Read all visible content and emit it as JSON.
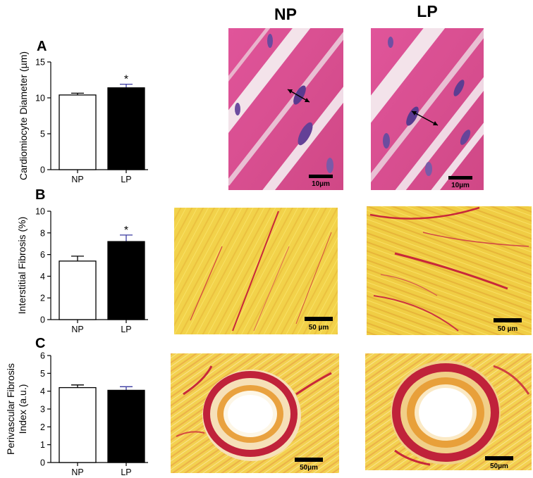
{
  "columns": [
    "NP",
    "LP"
  ],
  "panels": [
    {
      "letter": "A",
      "scale_bar": "10µm"
    },
    {
      "letter": "B",
      "scale_bar": "50 µm"
    },
    {
      "letter": "C",
      "scale_bar": "50µm"
    }
  ],
  "colors": {
    "NP_bar": "#ffffff",
    "LP_bar": "#000000",
    "he_stain": "#d8508e",
    "nuclei": "#5a3a8f",
    "picrosirius_yellow": "#f0d040",
    "collagen_red": "#c8283a"
  },
  "chart_data": [
    {
      "type": "bar",
      "panel": "A",
      "categories": [
        "NP",
        "LP"
      ],
      "values": [
        10.4,
        11.4
      ],
      "errors": [
        0.25,
        0.5
      ],
      "significance": [
        "",
        "*"
      ],
      "ylabel": "Cardiomiocyte Diameter (µm)",
      "ylim": [
        0,
        15
      ],
      "yticks": [
        0,
        5,
        10,
        15
      ]
    },
    {
      "type": "bar",
      "panel": "B",
      "categories": [
        "NP",
        "LP"
      ],
      "values": [
        5.4,
        7.2
      ],
      "errors": [
        0.45,
        0.6
      ],
      "significance": [
        "",
        "*"
      ],
      "ylabel": "Interstitial Fibrosis (%)",
      "ylim": [
        0,
        10
      ],
      "yticks": [
        0,
        2,
        4,
        6,
        8,
        10
      ]
    },
    {
      "type": "bar",
      "panel": "C",
      "categories": [
        "NP",
        "LP"
      ],
      "values": [
        4.2,
        4.05
      ],
      "errors": [
        0.15,
        0.2
      ],
      "significance": [
        "",
        ""
      ],
      "ylabel": [
        "Perivascular Fibrosis",
        "Index (a.u.)"
      ],
      "ylim": [
        0,
        6
      ],
      "yticks": [
        0,
        1,
        2,
        3,
        4,
        5,
        6
      ]
    }
  ]
}
